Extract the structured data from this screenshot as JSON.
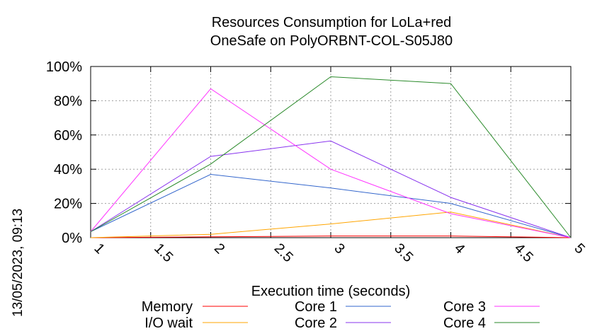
{
  "chart_data": {
    "type": "line",
    "title": "Resources Consumption for LoLa+red",
    "subtitle": "OneSafe on PolyORBNT-COL-S05J80",
    "xlabel": "Execution time (seconds)",
    "ylabel": "",
    "xlim": [
      1,
      5
    ],
    "ylim": [
      0,
      100
    ],
    "x_ticks": [
      "1",
      "1.5",
      "2",
      "2.5",
      "3",
      "3.5",
      "4",
      "4.5",
      "5"
    ],
    "y_ticks": [
      "0%",
      "20%",
      "40%",
      "60%",
      "80%",
      "100%"
    ],
    "grid": true,
    "legend_position": "bottom",
    "x": [
      1,
      2,
      3,
      4,
      5
    ],
    "series": [
      {
        "name": "Memory",
        "color": "#ff0000",
        "values": [
          0,
          0.5,
          1,
          1,
          0
        ]
      },
      {
        "name": "I/O wait",
        "color": "#ffa500",
        "values": [
          0,
          2,
          8,
          15,
          0
        ]
      },
      {
        "name": "Core 1",
        "color": "#3366cc",
        "values": [
          3.5,
          37,
          29,
          20,
          0
        ]
      },
      {
        "name": "Core 2",
        "color": "#8833ee",
        "values": [
          3.5,
          47.5,
          56.5,
          23.5,
          0
        ]
      },
      {
        "name": "Core 3",
        "color": "#ff33ff",
        "values": [
          3.5,
          87,
          40,
          14,
          0
        ]
      },
      {
        "name": "Core 4",
        "color": "#2a8a2a",
        "values": [
          3.5,
          43,
          94,
          90,
          0
        ]
      }
    ]
  },
  "timestamp": "13/05/2023, 09:13"
}
